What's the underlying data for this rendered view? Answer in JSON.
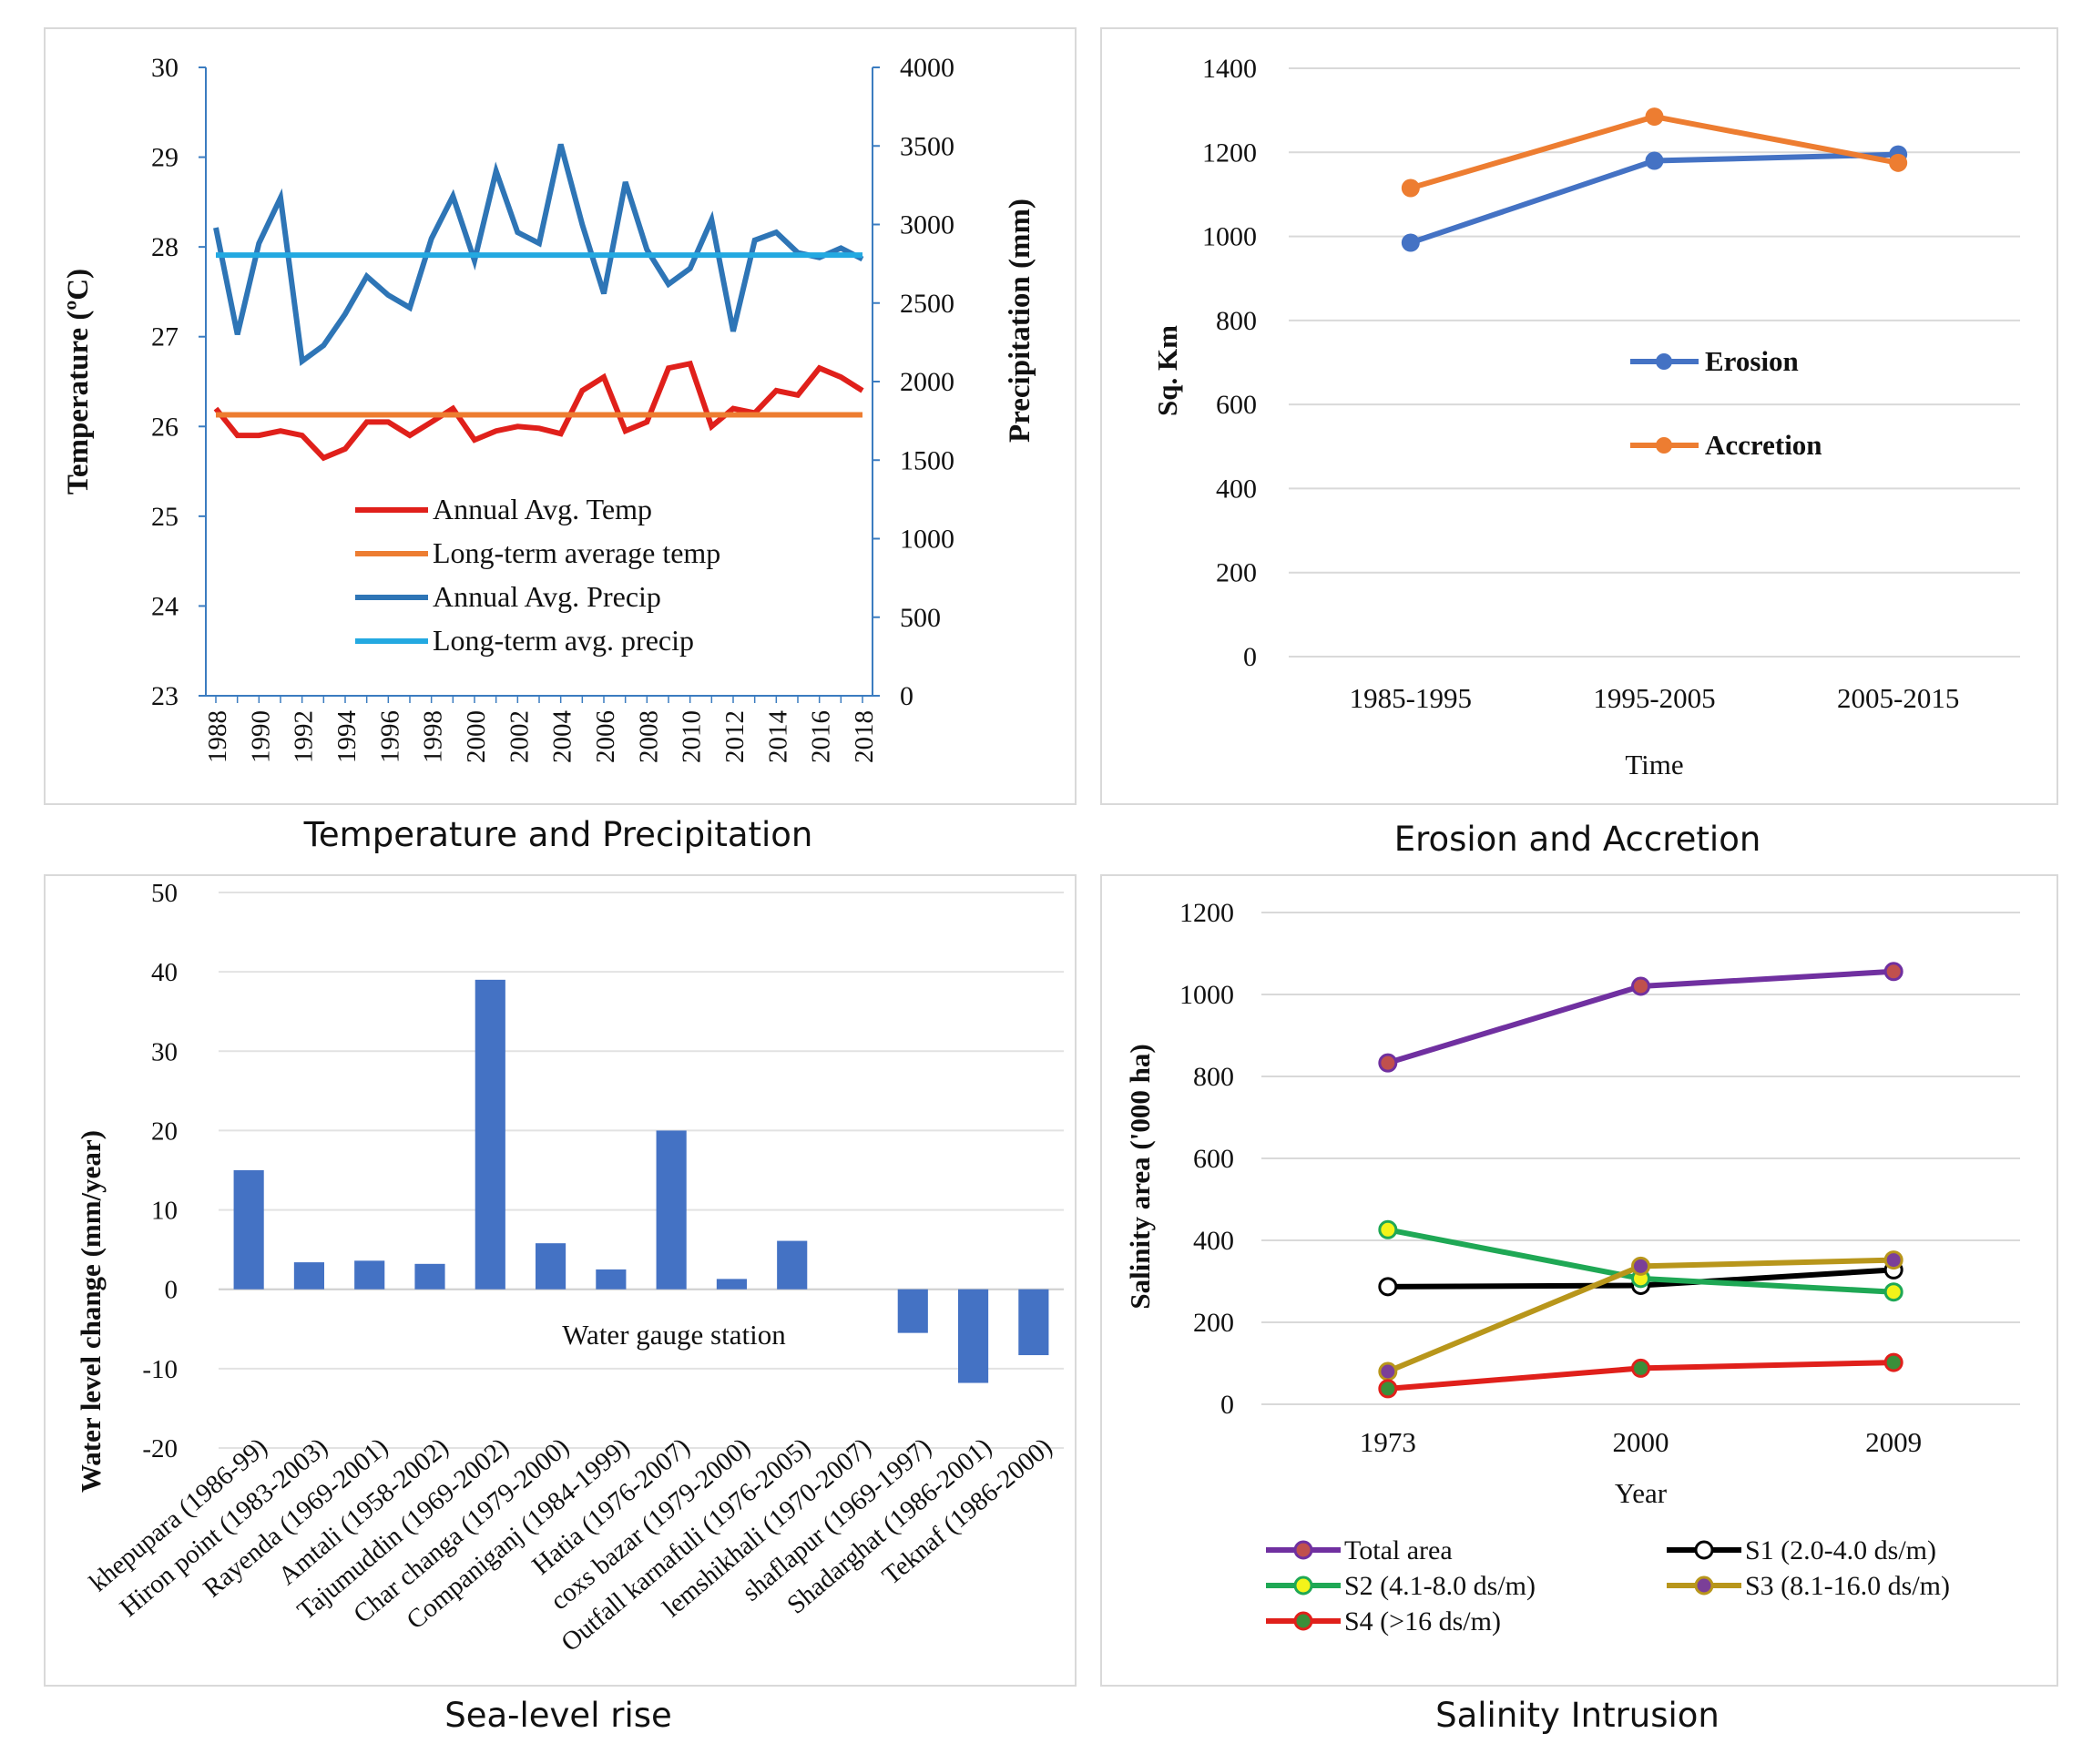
{
  "captions": {
    "temp_precip": "Temperature and Precipitation",
    "erosion": "Erosion and Accretion",
    "sea_level": "Sea-level rise",
    "salinity": "Salinity Intrusion"
  },
  "colors": {
    "annual_temp": "#e0201b",
    "longterm_temp": "#ed7d31",
    "annual_precip": "#2e75b6",
    "longterm_precip": "#23a9e1",
    "erosion": "#4472c4",
    "accretion": "#ed7d31",
    "bars": "#4472c4",
    "total_area": "#7030a0",
    "s1": "#000000",
    "s2": "#1fa855",
    "s3": "#b8961b",
    "s4": "#e0201b"
  },
  "chart_data": [
    {
      "id": "temp_precip",
      "type": "line",
      "title": "Temperature and Precipitation",
      "xlabel": "",
      "ylabel": "Temperature (ºC)",
      "y2label": "Precipitation (mm)",
      "ylim": [
        23,
        30
      ],
      "y2lim": [
        0,
        4000
      ],
      "yticks": [
        "30",
        "29",
        "28",
        "27",
        "26",
        "25",
        "24",
        "23"
      ],
      "y2ticks": [
        "4000",
        "3500",
        "3000",
        "2500",
        "2000",
        "1500",
        "1000",
        "500",
        "0"
      ],
      "x": [
        1988,
        1989,
        1990,
        1991,
        1992,
        1993,
        1994,
        1995,
        1996,
        1997,
        1998,
        1999,
        2000,
        2001,
        2002,
        2003,
        2004,
        2005,
        2006,
        2007,
        2008,
        2009,
        2010,
        2011,
        2012,
        2013,
        2014,
        2015,
        2016,
        2017,
        2018
      ],
      "xticks": [
        "1988",
        "1990",
        "1992",
        "1994",
        "1996",
        "1998",
        "2000",
        "2002",
        "2004",
        "2006",
        "2008",
        "2010",
        "2012",
        "2014",
        "2016",
        "2018"
      ],
      "series": [
        {
          "name": "Annual Avg. Temp",
          "axis": "left",
          "color_key": "annual_temp",
          "values": [
            26.2,
            25.9,
            25.9,
            25.95,
            25.9,
            25.65,
            25.75,
            26.05,
            26.05,
            25.9,
            26.05,
            26.2,
            25.85,
            25.95,
            26.0,
            25.98,
            25.92,
            26.4,
            26.55,
            25.95,
            26.05,
            26.65,
            26.7,
            26.0,
            26.2,
            26.15,
            26.4,
            26.35,
            26.65,
            26.55,
            26.4
          ]
        },
        {
          "name": "Long-term average temp",
          "axis": "left",
          "color_key": "longterm_temp",
          "values": [
            26.13,
            26.13,
            26.13,
            26.13,
            26.13,
            26.13,
            26.13,
            26.13,
            26.13,
            26.13,
            26.13,
            26.13,
            26.13,
            26.13,
            26.13,
            26.13,
            26.13,
            26.13,
            26.13,
            26.13,
            26.13,
            26.13,
            26.13,
            26.13,
            26.13,
            26.13,
            26.13,
            26.13,
            26.13,
            26.13,
            26.13
          ]
        },
        {
          "name": "Annual Avg. Precip",
          "axis": "right",
          "color_key": "annual_precip",
          "values": [
            2980,
            2300,
            2880,
            3170,
            2130,
            2230,
            2430,
            2670,
            2550,
            2470,
            2910,
            3180,
            2770,
            3340,
            2950,
            2880,
            3510,
            3000,
            2560,
            3270,
            2840,
            2620,
            2720,
            3030,
            2320,
            2900,
            2950,
            2820,
            2790,
            2850,
            2780
          ]
        },
        {
          "name": "Long-term avg. precip",
          "axis": "right",
          "color_key": "longterm_precip",
          "values": [
            2805,
            2805,
            2805,
            2805,
            2805,
            2805,
            2805,
            2805,
            2805,
            2805,
            2805,
            2805,
            2805,
            2805,
            2805,
            2805,
            2805,
            2805,
            2805,
            2805,
            2805,
            2805,
            2805,
            2805,
            2805,
            2805,
            2805,
            2805,
            2805,
            2805,
            2805
          ]
        }
      ]
    },
    {
      "id": "erosion",
      "type": "line",
      "title": "Erosion and Accretion",
      "xlabel": "Time",
      "ylabel": "Sq. Km",
      "ylim": [
        0,
        1400
      ],
      "yticks": [
        "1400",
        "1200",
        "1000",
        "800",
        "600",
        "400",
        "200",
        "0"
      ],
      "categories": [
        "1985-1995",
        "1995-2005",
        "2005-2015"
      ],
      "series": [
        {
          "name": "Erosion",
          "color_key": "erosion",
          "values": [
            985,
            1180,
            1195
          ]
        },
        {
          "name": "Accretion",
          "color_key": "accretion",
          "values": [
            1115,
            1285,
            1175
          ]
        }
      ]
    },
    {
      "id": "sea_level",
      "type": "bar",
      "title": "Sea-level rise",
      "xlabel": "Water gauge station",
      "ylabel": "Water level change (mm/year)",
      "ylim": [
        -20,
        50
      ],
      "yticks": [
        "50",
        "40",
        "30",
        "20",
        "10",
        "0",
        "-10",
        "-20"
      ],
      "categories": [
        "khepupara (1986-99)",
        "Hiron point (1983-2003)",
        "Rayenda (1969-2001)",
        "Amtali (1958-2002)",
        "Tajumuddin (1969-2002)",
        "Char changa (1979-2000)",
        "Companiganj (1984-1999)",
        "Hatia (1976-2007)",
        "coxs bazar (1979-2000)",
        "Outfall karnafuli (1976-2005)",
        "lemshikhali (1970-2007)",
        "shaflapur (1969-1997)",
        "Shadarghat (1986-2001)",
        "Teknaf (1986-2000)"
      ],
      "values": [
        15,
        3.4,
        3.6,
        3.2,
        39,
        5.8,
        2.5,
        20,
        1.3,
        6.1,
        0,
        -5.5,
        -11.8,
        -8.3
      ]
    },
    {
      "id": "salinity",
      "type": "line",
      "title": "Salinity Intrusion",
      "xlabel": "Year",
      "ylabel": "Salinity area ('000 ha)",
      "ylim": [
        0,
        1200
      ],
      "yticks": [
        "1200",
        "1000",
        "800",
        "600",
        "400",
        "200",
        "0"
      ],
      "categories": [
        "1973",
        "2000",
        "2009"
      ],
      "series": [
        {
          "name": "Total area",
          "color_key": "total_area",
          "marker_fill": "#c0504d",
          "values": [
            833,
            1020,
            1056
          ]
        },
        {
          "name": "S1 (2.0-4.0 ds/m)",
          "color_key": "s1",
          "marker_fill": "#ffffff",
          "values": [
            287,
            290,
            328
          ]
        },
        {
          "name": "S2 (4.1-8.0 ds/m)",
          "color_key": "s2",
          "marker_fill": "#f3f31a",
          "values": [
            426,
            307,
            274
          ]
        },
        {
          "name": "S3 (8.1-16.0 ds/m)",
          "color_key": "s3",
          "marker_fill": "#7b3f98",
          "values": [
            80,
            337,
            352
          ]
        },
        {
          "name": "S4 (>16 ds/m)",
          "color_key": "s4",
          "marker_fill": "#3a8f3a",
          "values": [
            38,
            88,
            102
          ]
        }
      ]
    }
  ]
}
